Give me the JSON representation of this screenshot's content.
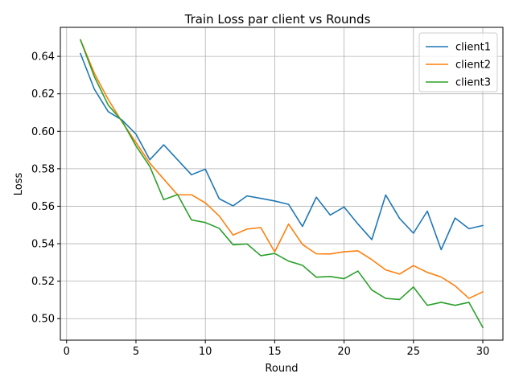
{
  "chart_data": {
    "type": "line",
    "title": "Train Loss par client vs Rounds",
    "xlabel": "Round",
    "ylabel": "Loss",
    "xlim": [
      -0.45,
      31.45
    ],
    "ylim": [
      0.4885,
      0.6555
    ],
    "xticks": [
      0,
      5,
      10,
      15,
      20,
      25,
      30
    ],
    "yticks": [
      0.5,
      0.52,
      0.54,
      0.56,
      0.58,
      0.6,
      0.62,
      0.64
    ],
    "ytick_labels": [
      "0.50",
      "0.52",
      "0.54",
      "0.56",
      "0.58",
      "0.60",
      "0.62",
      "0.64"
    ],
    "grid": true,
    "legend_position": "top-right",
    "x": [
      1,
      2,
      3,
      4,
      5,
      6,
      7,
      8,
      9,
      10,
      11,
      12,
      13,
      14,
      15,
      16,
      17,
      18,
      19,
      20,
      21,
      22,
      23,
      24,
      25,
      26,
      27,
      28,
      29,
      30
    ],
    "series": [
      {
        "name": "client1",
        "color": "#1f77b4",
        "values": [
          0.6415,
          0.6225,
          0.6105,
          0.606,
          0.5985,
          0.5848,
          0.5928,
          0.5848,
          0.5768,
          0.5798,
          0.564,
          0.5602,
          0.5655,
          0.5642,
          0.5628,
          0.561,
          0.5492,
          0.5648,
          0.5553,
          0.5596,
          0.5505,
          0.5422,
          0.566,
          0.5535,
          0.5456,
          0.5574,
          0.5368,
          0.5537,
          0.548,
          0.5497
        ]
      },
      {
        "name": "client2",
        "color": "#ff7f0e",
        "values": [
          0.6488,
          0.631,
          0.617,
          0.605,
          0.594,
          0.583,
          0.5745,
          0.5661,
          0.5661,
          0.5618,
          0.5548,
          0.5446,
          0.5478,
          0.5486,
          0.5356,
          0.5505,
          0.5396,
          0.5346,
          0.5345,
          0.5357,
          0.5362,
          0.5315,
          0.526,
          0.5238,
          0.5283,
          0.5247,
          0.5222,
          0.5175,
          0.5108,
          0.5143
        ]
      },
      {
        "name": "client3",
        "color": "#2ca02c",
        "values": [
          0.6488,
          0.6292,
          0.614,
          0.6055,
          0.5922,
          0.5812,
          0.5635,
          0.5662,
          0.5527,
          0.5513,
          0.5482,
          0.5394,
          0.5399,
          0.5336,
          0.5348,
          0.5307,
          0.5285,
          0.5221,
          0.5225,
          0.5213,
          0.5254,
          0.5153,
          0.5108,
          0.5102,
          0.5169,
          0.5071,
          0.5087,
          0.5071,
          0.5087,
          0.4953
        ]
      }
    ]
  }
}
